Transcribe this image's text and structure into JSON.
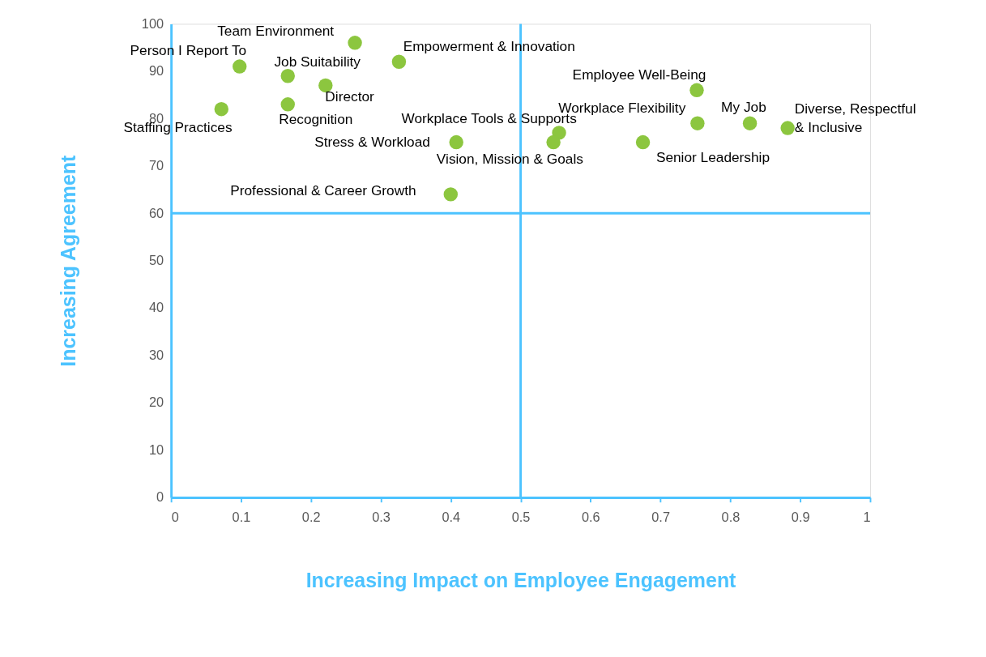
{
  "chart_data": {
    "type": "scatter",
    "xlabel": "Increasing Impact on Employee Engagement",
    "ylabel": "Increasing Agreement",
    "series": [
      {
        "color": "#8cc63f",
        "x": [
          0.263,
          0.098,
          0.167,
          0.221,
          0.326,
          0.072,
          0.167,
          0.408,
          0.4,
          0.555,
          0.547,
          0.675,
          0.752,
          0.753,
          0.828,
          0.882
        ],
        "values": [
          96,
          91,
          89,
          87,
          92,
          82,
          83,
          75,
          64,
          77,
          75,
          75,
          86,
          79,
          79,
          78
        ]
      }
    ],
    "annotations": [
      {
        "text": "Team Environment",
        "x": 0.263,
        "y": 96
      },
      {
        "text": "Person I Report To",
        "x": 0.098,
        "y": 91
      },
      {
        "text": "Job Suitability",
        "x": 0.167,
        "y": 89
      },
      {
        "text": "Director",
        "x": 0.221,
        "y": 87
      },
      {
        "text": "Empowerment & Innovation",
        "x": 0.326,
        "y": 92
      },
      {
        "text": "Staffing Practices",
        "x": 0.072,
        "y": 82
      },
      {
        "text": "Recognition",
        "x": 0.167,
        "y": 83
      },
      {
        "text": "Stress & Workload",
        "x": 0.408,
        "y": 75
      },
      {
        "text": "Professional & Career Growth",
        "x": 0.4,
        "y": 64
      },
      {
        "text": "Workplace Tools & Supports",
        "x": 0.555,
        "y": 77
      },
      {
        "text": "Vision, Mission & Goals",
        "x": 0.547,
        "y": 75
      },
      {
        "text": "Senior Leadership",
        "x": 0.675,
        "y": 75
      },
      {
        "text": "Employee Well-Being",
        "x": 0.752,
        "y": 86
      },
      {
        "text": "Workplace Flexibility",
        "x": 0.753,
        "y": 79
      },
      {
        "text": "My Job",
        "x": 0.828,
        "y": 79
      },
      {
        "text": "Diverse, Respectful\n& Inclusive",
        "x": 0.882,
        "y": 78
      }
    ],
    "ref_lines": [
      {
        "axis": "x",
        "value": 0.5,
        "color": "#4cc3ff"
      },
      {
        "axis": "y",
        "value": 60,
        "color": "#4cc3ff"
      }
    ],
    "xlim": [
      0,
      1
    ],
    "xticks": [
      0,
      0.1,
      0.2,
      0.3,
      0.4,
      0.5,
      0.6,
      0.7,
      0.8,
      0.9,
      1
    ],
    "ylim": [
      0,
      100
    ],
    "yticks": [
      0,
      10,
      20,
      30,
      40,
      50,
      60,
      70,
      80,
      90,
      100
    ],
    "grid": false,
    "marker": "circle"
  }
}
